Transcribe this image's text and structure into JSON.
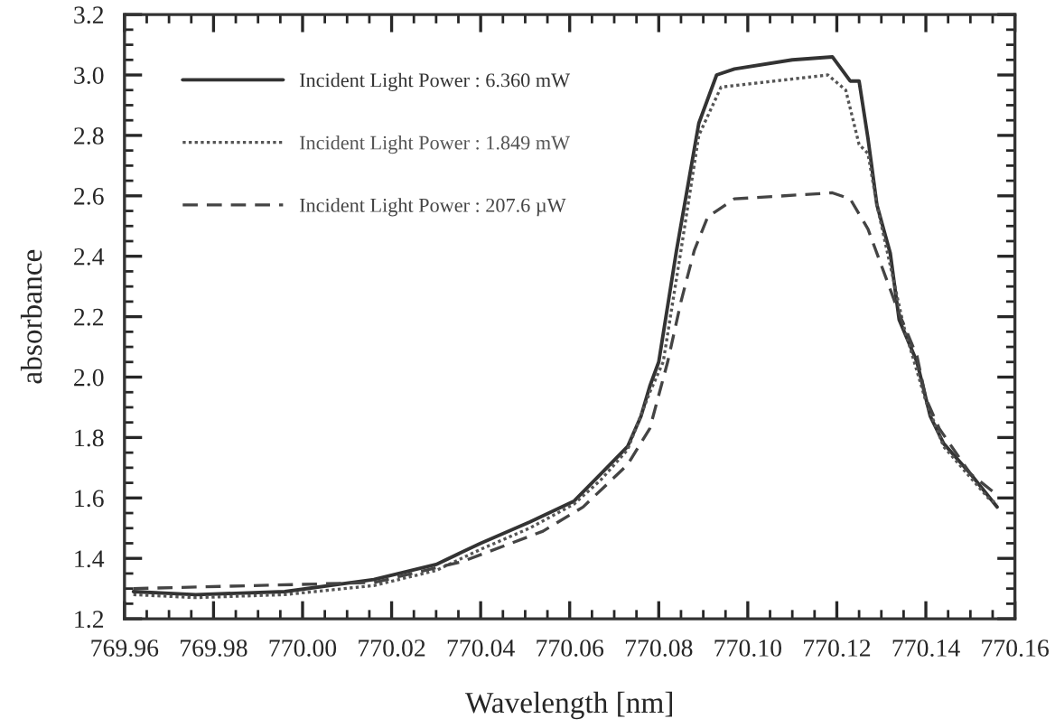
{
  "chart_data": {
    "type": "line",
    "xlabel": "Wavelength [nm]",
    "ylabel": "absorbance",
    "xlim": [
      769.96,
      770.16
    ],
    "xticks": [
      769.96,
      769.98,
      {
        "value": 770.0,
        "label": "770.00"
      },
      770.02,
      770.04,
      770.06,
      770.08,
      {
        "value": 770.1,
        "label": "770.10"
      },
      770.12,
      770.14,
      770.16
    ],
    "ylim": [
      1.2,
      3.2
    ],
    "yticks": [
      1.2,
      1.4,
      1.6,
      1.8,
      {
        "value": 2.0,
        "label": "2.0"
      },
      2.2,
      2.4,
      2.6,
      2.8,
      {
        "value": 3.0,
        "label": "3.0"
      },
      3.2
    ],
    "grid": false,
    "legend": "top left",
    "marker": "none",
    "series": [
      {
        "name": "Incident Light Power : 6.360 mW",
        "color": "#333333",
        "line_style": "solid",
        "x": [
          769.962,
          769.976,
          769.996,
          770.016,
          770.03,
          770.04,
          770.051,
          770.061,
          770.067,
          770.073,
          770.076,
          770.078,
          770.08,
          770.084,
          770.089,
          770.093,
          770.097,
          770.11,
          770.119,
          770.123,
          770.125,
          770.127,
          770.129,
          770.132,
          770.134,
          770.138,
          770.141,
          770.144,
          770.15,
          770.156
        ],
        "values": [
          1.29,
          1.28,
          1.29,
          1.33,
          1.38,
          1.45,
          1.52,
          1.59,
          1.68,
          1.77,
          1.87,
          1.97,
          2.05,
          2.42,
          2.84,
          3.0,
          3.02,
          3.05,
          3.06,
          2.98,
          2.98,
          2.79,
          2.57,
          2.41,
          2.19,
          2.05,
          1.87,
          1.78,
          1.68,
          1.57
        ]
      },
      {
        "name": "Incident Light Power : 1.849 mW",
        "color": "#555555",
        "line_style": "dotted",
        "x": [
          769.962,
          769.976,
          769.996,
          770.016,
          770.03,
          770.04,
          770.051,
          770.061,
          770.067,
          770.073,
          770.078,
          770.081,
          770.085,
          770.089,
          770.094,
          770.118,
          770.122,
          770.125,
          770.127,
          770.129,
          770.132,
          770.135,
          770.14,
          770.144,
          770.154,
          770.156
        ],
        "values": [
          1.28,
          1.27,
          1.28,
          1.31,
          1.36,
          1.43,
          1.5,
          1.58,
          1.66,
          1.76,
          1.95,
          2.05,
          2.42,
          2.8,
          2.96,
          3.0,
          2.95,
          2.77,
          2.74,
          2.57,
          2.37,
          2.17,
          1.92,
          1.77,
          1.6,
          1.58
        ]
      },
      {
        "name": "Incident Light Power : 207.6 µW",
        "color": "#444444",
        "line_style": "dashed",
        "x": [
          769.962,
          769.989,
          770.016,
          770.036,
          770.054,
          770.063,
          770.073,
          770.078,
          770.082,
          770.085,
          770.088,
          770.091,
          770.097,
          770.119,
          770.123,
          770.127,
          770.131,
          770.134,
          770.138,
          770.14,
          770.143,
          770.15,
          770.156
        ],
        "values": [
          1.3,
          1.31,
          1.32,
          1.39,
          1.49,
          1.57,
          1.71,
          1.83,
          2.05,
          2.25,
          2.42,
          2.53,
          2.59,
          2.61,
          2.59,
          2.49,
          2.33,
          2.21,
          2.07,
          1.93,
          1.83,
          1.68,
          1.61
        ]
      }
    ]
  }
}
